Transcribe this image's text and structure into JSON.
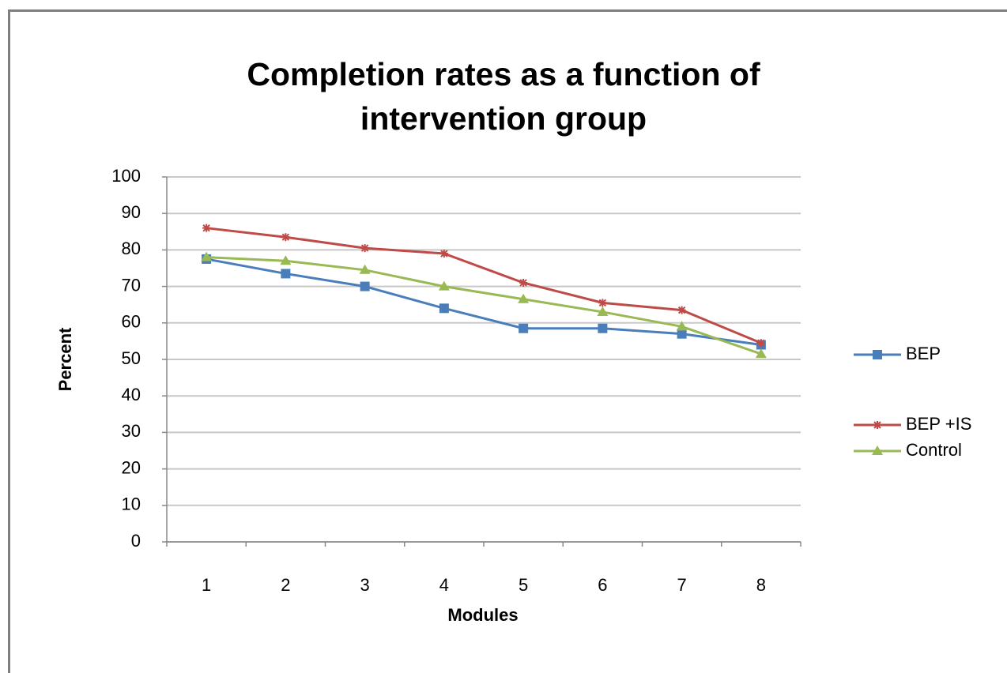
{
  "chart_data": {
    "type": "line",
    "title": "Completion rates as a function of intervention group",
    "x_label": "Modules",
    "y_label": "Percent",
    "categories": [
      "1",
      "2",
      "3",
      "4",
      "5",
      "6",
      "7",
      "8"
    ],
    "series": [
      {
        "name": "BEP",
        "color": "#4a7ebb",
        "marker": "square",
        "values": [
          77.5,
          73.5,
          70,
          64,
          58.5,
          58.5,
          57,
          54
        ]
      },
      {
        "name": "BEP +IS",
        "color": "#be4b48",
        "marker": "star",
        "values": [
          86,
          83.5,
          80.5,
          79,
          71,
          65.5,
          63.5,
          54.5
        ]
      },
      {
        "name": "Control",
        "color": "#98b954",
        "marker": "triangle",
        "values": [
          78,
          77,
          74.5,
          70,
          66.5,
          63,
          59,
          51.5
        ]
      }
    ],
    "ylim": [
      0,
      100
    ],
    "yticks": [
      0,
      10,
      20,
      30,
      40,
      50,
      60,
      70,
      80,
      90,
      100
    ],
    "grid": true,
    "legend": "right"
  }
}
